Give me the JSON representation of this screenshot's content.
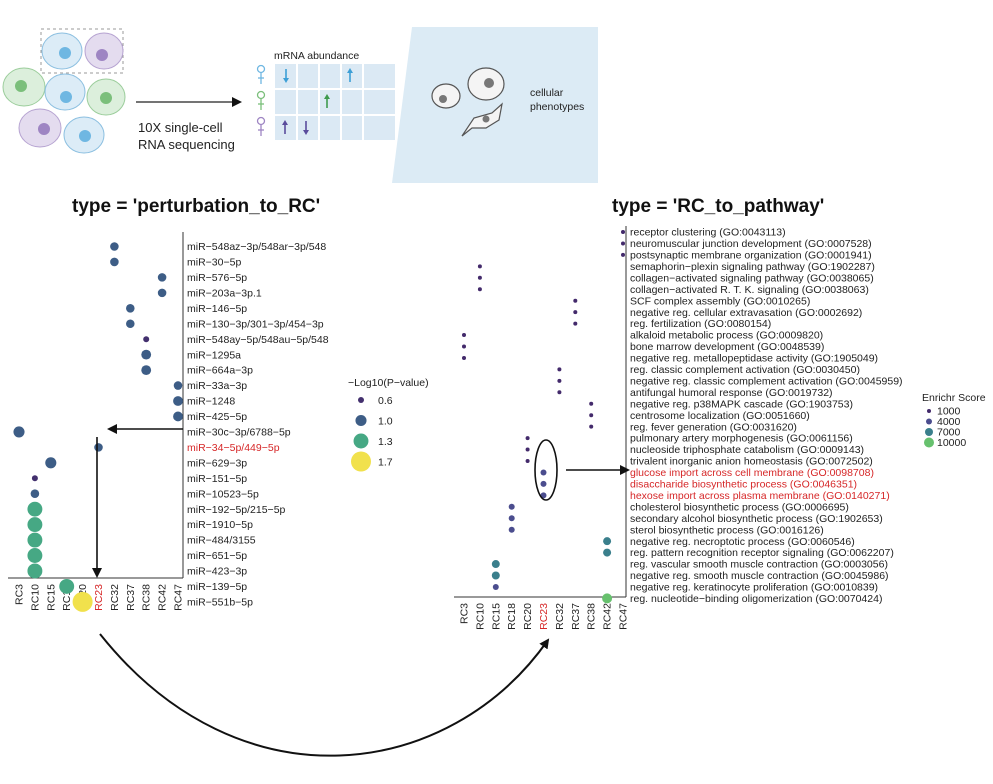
{
  "schematic": {
    "seq_label_line1": "10X single-cell",
    "seq_label_line2": "RNA sequencing",
    "mrna_label": "mRNA abundance",
    "phenotype_line1": "cellular",
    "phenotype_line2": "phenotypes"
  },
  "colors": {
    "c06": "#43306e",
    "c10": "#3d5d86",
    "c13": "#46a884",
    "c17": "#f1e14c",
    "e1000": "#432a6b",
    "e4000": "#4b4d8e",
    "e7000": "#3a7f8c",
    "e10000": "#67c16e",
    "highlight": "#d62728"
  },
  "chart_data": [
    {
      "type": "scatter",
      "title": "type = 'perturbation_to_RC'",
      "x_categories": [
        "RC3",
        "RC10",
        "RC15",
        "RC18",
        "RC20",
        "RC23",
        "RC32",
        "RC37",
        "RC38",
        "RC42",
        "RC47"
      ],
      "y_categories": [
        "miR−548az−3p/548ar−3p/548",
        "miR−30−5p",
        "miR−576−5p",
        "miR−203a−3p.1",
        "miR−146−5p",
        "miR−130−3p/301−3p/454−3p",
        "miR−548ay−5p/548au−5p/548",
        "miR−1295a",
        "miR−664a−3p",
        "miR−33a−3p",
        "miR−1248",
        "miR−425−5p",
        "miR−30c−3p/6788−5p",
        "miR−34−5p/449−5p",
        "miR−629−3p",
        "miR−151−5p",
        "miR−10523−5p",
        "miR−192−5p/215−5p",
        "miR−1910−5p",
        "miR−484/3155",
        "miR−651−5p",
        "miR−423−3p",
        "miR−139−5p",
        "miR−551b−5p"
      ],
      "highlight_x": "RC23",
      "highlight_y": "miR−34−5p/449−5p",
      "legend_title": "−Log10(P−value)",
      "legend": [
        {
          "label": "0.6",
          "value": 0.6
        },
        {
          "label": "1.0",
          "value": 1.0
        },
        {
          "label": "1.3",
          "value": 1.3
        },
        {
          "label": "1.7",
          "value": 1.7
        }
      ],
      "points": [
        {
          "x": "RC32",
          "y": 0,
          "v": 0.8
        },
        {
          "x": "RC32",
          "y": 1,
          "v": 0.8
        },
        {
          "x": "RC42",
          "y": 2,
          "v": 0.8
        },
        {
          "x": "RC42",
          "y": 3,
          "v": 0.8
        },
        {
          "x": "RC37",
          "y": 4,
          "v": 0.8
        },
        {
          "x": "RC37",
          "y": 5,
          "v": 0.8
        },
        {
          "x": "RC38",
          "y": 6,
          "v": 0.6
        },
        {
          "x": "RC38",
          "y": 7,
          "v": 0.9
        },
        {
          "x": "RC38",
          "y": 8,
          "v": 0.9
        },
        {
          "x": "RC47",
          "y": 9,
          "v": 0.8
        },
        {
          "x": "RC47",
          "y": 10,
          "v": 0.9
        },
        {
          "x": "RC47",
          "y": 11,
          "v": 0.9
        },
        {
          "x": "RC3",
          "y": 12,
          "v": 1.0
        },
        {
          "x": "RC23",
          "y": 13,
          "v": 0.8
        },
        {
          "x": "RC15",
          "y": 14,
          "v": 1.0
        },
        {
          "x": "RC10",
          "y": 15,
          "v": 0.6
        },
        {
          "x": "RC10",
          "y": 16,
          "v": 0.8
        },
        {
          "x": "RC10",
          "y": 17,
          "v": 1.3
        },
        {
          "x": "RC10",
          "y": 18,
          "v": 1.3
        },
        {
          "x": "RC10",
          "y": 19,
          "v": 1.3
        },
        {
          "x": "RC10",
          "y": 20,
          "v": 1.3
        },
        {
          "x": "RC10",
          "y": 21,
          "v": 1.3
        },
        {
          "x": "RC18",
          "y": 22,
          "v": 1.3
        },
        {
          "x": "RC20",
          "y": 23,
          "v": 1.7
        }
      ]
    },
    {
      "type": "scatter",
      "title": "type = 'RC_to_pathway'",
      "x_categories": [
        "RC3",
        "RC10",
        "RC15",
        "RC18",
        "RC20",
        "RC23",
        "RC32",
        "RC37",
        "RC38",
        "RC42",
        "RC47"
      ],
      "y_categories": [
        "receptor clustering (GO:0043113)",
        "neuromuscular junction development (GO:0007528)",
        "postsynaptic membrane organization (GO:0001941)",
        "semaphorin−plexin signaling pathway (GO:1902287)",
        "collagen−activated signaling pathway (GO:0038065)",
        "collagen−activated R. T. K. signaling (GO:0038063)",
        "SCF complex assembly (GO:0010265)",
        "negative reg. cellular extravasation (GO:0002692)",
        "reg. fertilization (GO:0080154)",
        "alkaloid metabolic process (GO:0009820)",
        "bone marrow development (GO:0048539)",
        "negative reg. metallopeptidase activity (GO:1905049)",
        "reg. classic complement activation (GO:0030450)",
        "negative reg. classic complement activation (GO:0045959)",
        "antifungal humoral response (GO:0019732)",
        "negative reg. p38MAPK cascade (GO:1903753)",
        "centrosome localization (GO:0051660)",
        "reg. fever generation (GO:0031620)",
        "pulmonary artery morphogenesis (GO:0061156)",
        "nucleoside triphosphate catabolism (GO:0009143)",
        "trivalent inorganic anion homeostasis (GO:0072502)",
        "glucose import across cell membrane (GO:0098708)",
        "disaccharide biosynthetic process (GO:0046351)",
        "hexose import across plasma membrane (GO:0140271)",
        "cholesterol biosynthetic process (GO:0006695)",
        "secondary alcohol biosynthetic process (GO:1902653)",
        "sterol biosynthetic process (GO:0016126)",
        "negative reg. necroptotic process (GO:0060546)",
        "reg. pattern recognition receptor signaling (GO:0062207)",
        "reg. vascular smooth muscle contraction (GO:0003056)",
        "negative reg. smooth muscle contraction (GO:0045986)",
        "negative reg. keratinocyte proliferation (GO:0010839)",
        "reg. nucleotide−binding oligomerization (GO:0070424)"
      ],
      "highlight_x": "RC23",
      "highlight_y": [
        "glucose import across cell membrane (GO:0098708)",
        "disaccharide biosynthetic process (GO:0046351)",
        "hexose import across plasma membrane (GO:0140271)"
      ],
      "legend_title": "Enrichr Score",
      "legend": [
        {
          "label": "1000",
          "value": 1000
        },
        {
          "label": "4000",
          "value": 4000
        },
        {
          "label": "7000",
          "value": 7000
        },
        {
          "label": "10000",
          "value": 10000
        }
      ],
      "points": [
        {
          "x": "RC47",
          "y": 0,
          "v": 1000
        },
        {
          "x": "RC47",
          "y": 1,
          "v": 1000
        },
        {
          "x": "RC47",
          "y": 2,
          "v": 1000
        },
        {
          "x": "RC10",
          "y": 3,
          "v": 1000
        },
        {
          "x": "RC10",
          "y": 4,
          "v": 1000
        },
        {
          "x": "RC10",
          "y": 5,
          "v": 1000
        },
        {
          "x": "RC37",
          "y": 6,
          "v": 1000
        },
        {
          "x": "RC37",
          "y": 7,
          "v": 1000
        },
        {
          "x": "RC37",
          "y": 8,
          "v": 1000
        },
        {
          "x": "RC3",
          "y": 9,
          "v": 1000
        },
        {
          "x": "RC3",
          "y": 10,
          "v": 1000
        },
        {
          "x": "RC3",
          "y": 11,
          "v": 1000
        },
        {
          "x": "RC32",
          "y": 12,
          "v": 1000
        },
        {
          "x": "RC32",
          "y": 13,
          "v": 1000
        },
        {
          "x": "RC32",
          "y": 14,
          "v": 1000
        },
        {
          "x": "RC38",
          "y": 15,
          "v": 1000
        },
        {
          "x": "RC38",
          "y": 16,
          "v": 1000
        },
        {
          "x": "RC38",
          "y": 17,
          "v": 1000
        },
        {
          "x": "RC20",
          "y": 18,
          "v": 1000
        },
        {
          "x": "RC20",
          "y": 19,
          "v": 1000
        },
        {
          "x": "RC20",
          "y": 20,
          "v": 1000
        },
        {
          "x": "RC23",
          "y": 21,
          "v": 4000
        },
        {
          "x": "RC23",
          "y": 22,
          "v": 4000
        },
        {
          "x": "RC23",
          "y": 23,
          "v": 4000
        },
        {
          "x": "RC18",
          "y": 24,
          "v": 4000
        },
        {
          "x": "RC18",
          "y": 25,
          "v": 4000
        },
        {
          "x": "RC18",
          "y": 26,
          "v": 4000
        },
        {
          "x": "RC42",
          "y": 27,
          "v": 7000
        },
        {
          "x": "RC42",
          "y": 28,
          "v": 7000
        },
        {
          "x": "RC15",
          "y": 29,
          "v": 7000
        },
        {
          "x": "RC15",
          "y": 30,
          "v": 7000
        },
        {
          "x": "RC15",
          "y": 31,
          "v": 4000
        },
        {
          "x": "RC42",
          "y": 32,
          "v": 10000
        }
      ]
    }
  ]
}
